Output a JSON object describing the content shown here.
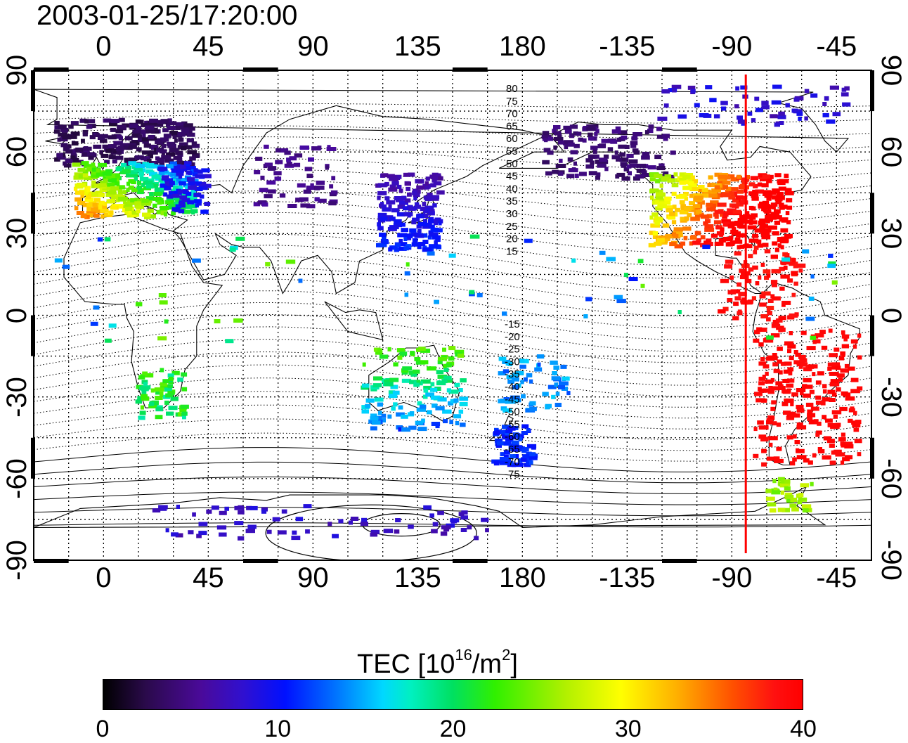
{
  "title": "2003-01-25/17:20:00",
  "map": {
    "lon_ticks": [
      "0",
      "45",
      "90",
      "135",
      "180",
      "-135",
      "-90",
      "-45"
    ],
    "lat_ticks": [
      "90",
      "60",
      "30",
      "0",
      "-30",
      "-60",
      "-90"
    ],
    "dip_lat_labels_upper": [
      "80",
      "75",
      "70",
      "65",
      "60",
      "55",
      "50",
      "45",
      "40",
      "35",
      "30",
      "25",
      "20",
      "15"
    ],
    "dip_lat_labels_lower": [
      "-15",
      "-20",
      "-25",
      "-30",
      "-35",
      "-40",
      "-45",
      "-50",
      "-55",
      "-60",
      "-65",
      "-70",
      "-75"
    ],
    "marker_longitude": -84,
    "marker_color": "#ff0000"
  },
  "colorbar": {
    "title_main": "TEC  [10",
    "title_exp1": "16",
    "title_mid": "/m",
    "title_exp2": "2",
    "title_end": "]",
    "ticks": [
      "0",
      "10",
      "20",
      "30",
      "40"
    ],
    "min": 0,
    "max": 40
  }
}
